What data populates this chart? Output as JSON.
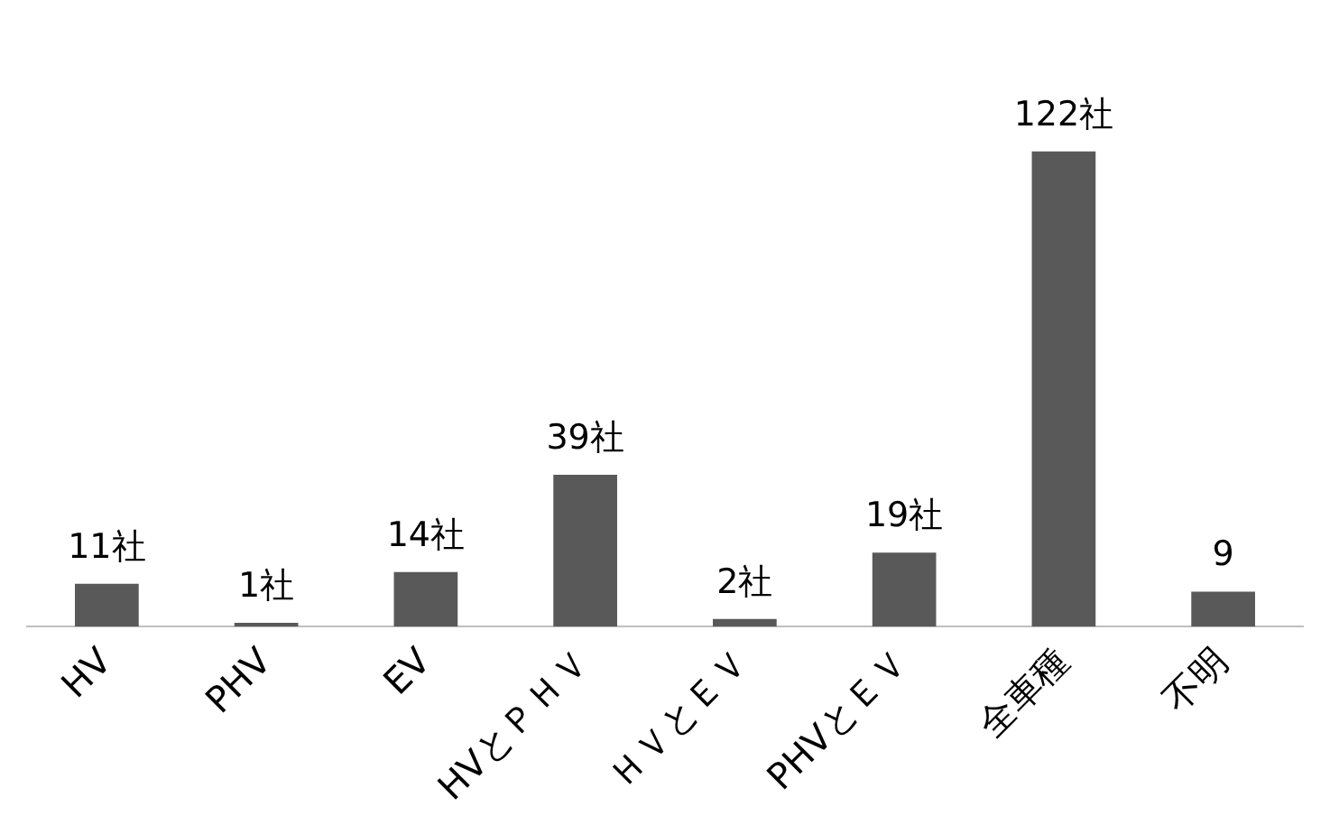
{
  "chart_data": {
    "type": "bar",
    "categories": [
      "HV",
      "PHV",
      "EV",
      "HVとＰＨＶ",
      "ＨＶとＥＶ",
      "PHVとＥＶ",
      "全車種",
      "不明"
    ],
    "values": [
      11,
      1,
      14,
      39,
      2,
      19,
      122,
      9
    ],
    "value_labels": [
      "11社",
      "1社",
      "14社",
      "39社",
      "2社",
      "19社",
      "122社",
      "9"
    ],
    "color": "#595959",
    "grid": false,
    "legend": false
  }
}
